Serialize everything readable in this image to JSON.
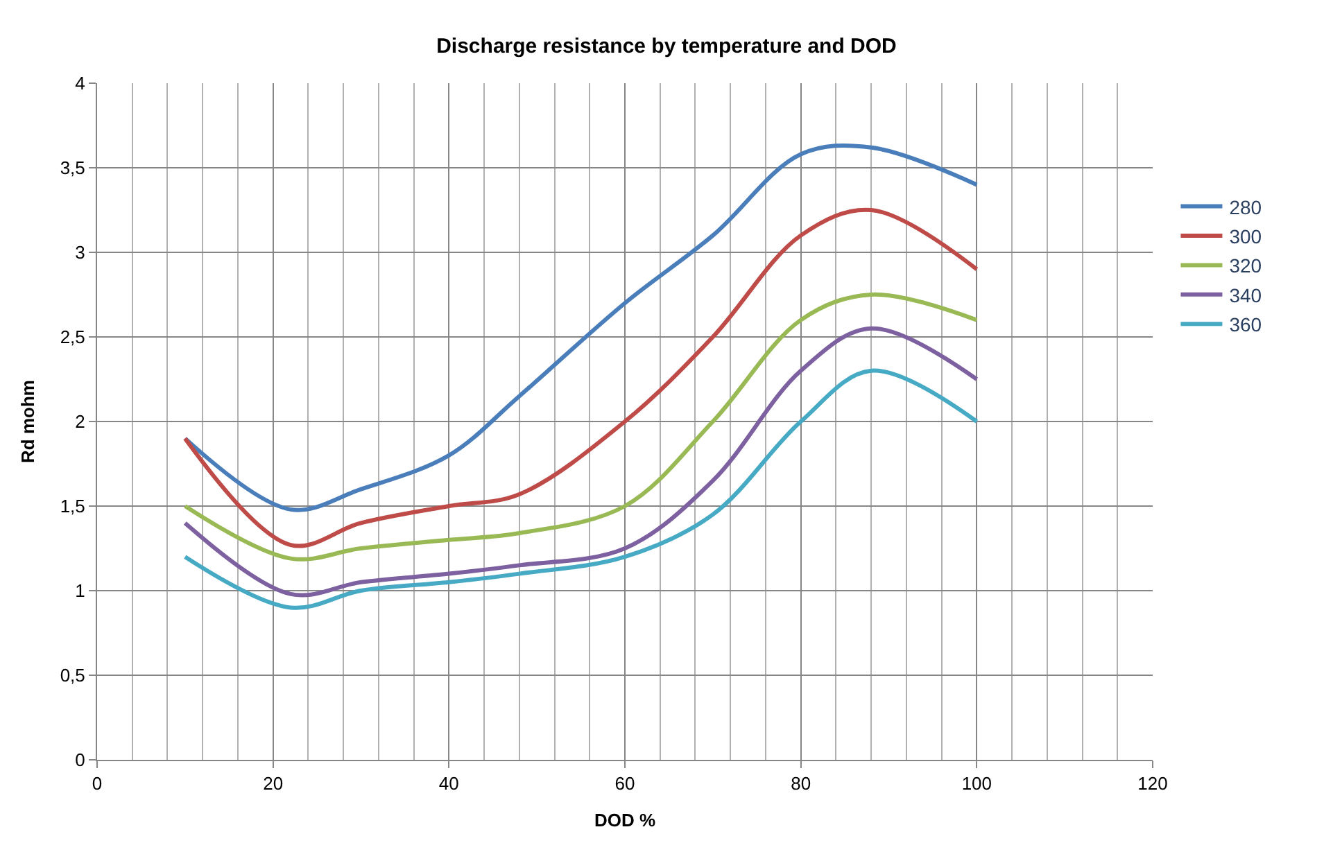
{
  "chart_data": {
    "type": "line",
    "title": "Discharge resistance by temperature and DOD",
    "xlabel": "DOD %",
    "ylabel": "Rd mohm",
    "x": [
      10,
      22,
      30,
      40,
      48,
      60,
      70,
      80,
      88,
      100
    ],
    "series": [
      {
        "name": "280",
        "color": "#4a7ebb",
        "values": [
          1.9,
          1.48,
          1.6,
          1.8,
          2.15,
          2.7,
          3.1,
          3.58,
          3.62,
          3.4
        ]
      },
      {
        "name": "300",
        "color": "#be4b48",
        "values": [
          1.9,
          1.27,
          1.4,
          1.5,
          1.57,
          2.0,
          2.5,
          3.1,
          3.25,
          2.9
        ]
      },
      {
        "name": "320",
        "color": "#98b954",
        "values": [
          1.5,
          1.19,
          1.25,
          1.3,
          1.34,
          1.5,
          2.0,
          2.6,
          2.75,
          2.6
        ]
      },
      {
        "name": "340",
        "color": "#7d60a0",
        "values": [
          1.4,
          0.98,
          1.05,
          1.1,
          1.15,
          1.25,
          1.65,
          2.3,
          2.55,
          2.25
        ]
      },
      {
        "name": "360",
        "color": "#46aac5",
        "values": [
          1.2,
          0.9,
          1.0,
          1.05,
          1.1,
          1.2,
          1.45,
          2.0,
          2.3,
          2.0
        ]
      }
    ],
    "xlim": [
      0,
      120
    ],
    "xticks": [
      0,
      20,
      40,
      60,
      80,
      100,
      120
    ],
    "ylim": [
      0,
      4
    ],
    "yticks": [
      0,
      {
        "value": 0.5,
        "label": "0,5"
      },
      1,
      {
        "value": 1.5,
        "label": "1,5"
      },
      2,
      {
        "value": 2.5,
        "label": "2,5"
      },
      3,
      {
        "value": 3.5,
        "label": "3,5"
      },
      4
    ],
    "grid": true,
    "legend": "right",
    "marker": "none",
    "line_style": "solid"
  }
}
